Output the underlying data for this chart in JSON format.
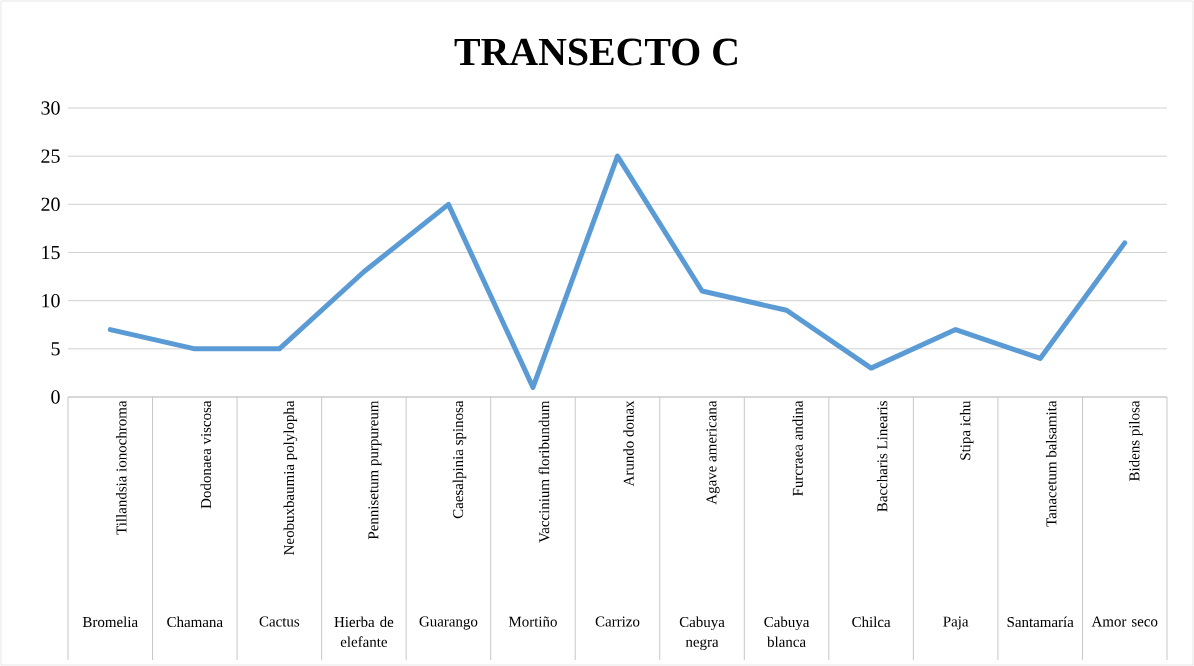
{
  "chart_data": {
    "type": "line",
    "title": "TRANSECTO C",
    "categories": [
      "Tillandsia ionochroma",
      "Dodonaea viscosa",
      "Neobuxbaumia polylopha",
      "Pennisetum purpureum",
      "Caesalpinia spinosa",
      "Vaccinium floribundum",
      "Arundo donax",
      "Agave americana",
      "Furcraea andina",
      "Baccharis Linearis",
      "Stipa ichu",
      "Tanacetum balsamita",
      "Bidens pilosa"
    ],
    "values": [
      7,
      5,
      5,
      13,
      20,
      1,
      25,
      11,
      9,
      3,
      7,
      4,
      16
    ],
    "color": "#5b9bd5",
    "ylim": [
      0,
      30
    ],
    "yticks": [
      0,
      5,
      10,
      15,
      20,
      25,
      30
    ],
    "grid": "y",
    "marker": "none",
    "line_style": "solid",
    "annotations": [
      "Bromelia",
      "Chamana",
      "Cactus",
      "Hierba de elefante",
      "Guarango",
      "Mortiño",
      "Carrizo",
      "Cabuya negra",
      "Cabuya blanca",
      "Chilca",
      "Paja",
      "Santamaría",
      "Amor seco"
    ]
  }
}
